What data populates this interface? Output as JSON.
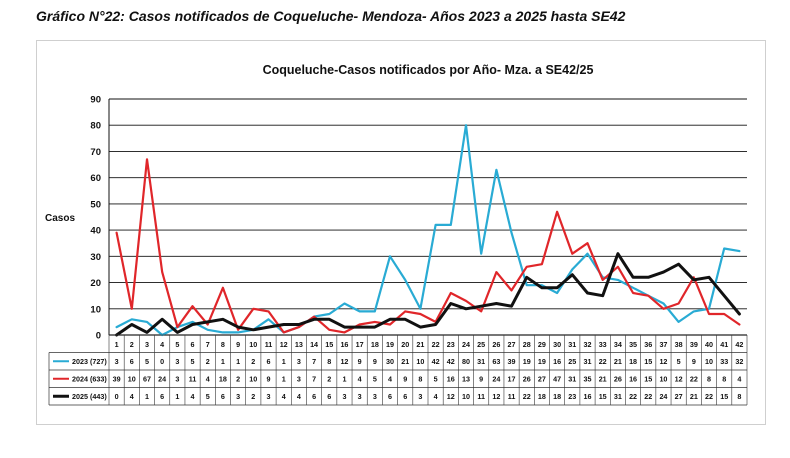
{
  "page": {
    "heading": "Gráfico N°22: Casos notificados de Coqueluche- Mendoza- Años 2023 a 2025 hasta SE42"
  },
  "chart_data": {
    "type": "line",
    "title": "Coqueluche-Casos notificados por Año- Mza. a SE42/25",
    "ylabel": "Casos",
    "xlabel": "",
    "ylim": [
      0,
      90
    ],
    "yticks": [
      0,
      10,
      20,
      30,
      40,
      50,
      60,
      70,
      80,
      90
    ],
    "grid": "horizontal",
    "legend": "data table below the plot",
    "categories": [
      "1",
      "2",
      "3",
      "4",
      "5",
      "6",
      "7",
      "8",
      "9",
      "10",
      "11",
      "12",
      "13",
      "14",
      "15",
      "16",
      "17",
      "18",
      "19",
      "20",
      "21",
      "22",
      "23",
      "24",
      "25",
      "26",
      "27",
      "28",
      "29",
      "30",
      "31",
      "32",
      "33",
      "34",
      "35",
      "36",
      "37",
      "38",
      "39",
      "40",
      "41",
      "42"
    ],
    "series": [
      {
        "name": "2023 (727)",
        "color": "#29abd4",
        "values": [
          3,
          6,
          5,
          0,
          3,
          5,
          2,
          1,
          1,
          2,
          6,
          1,
          3,
          7,
          8,
          12,
          9,
          9,
          30,
          21,
          10,
          42,
          42,
          80,
          31,
          63,
          39,
          19,
          19,
          16,
          25,
          31,
          22,
          21,
          18,
          15,
          12,
          5,
          9,
          10,
          33,
          32
        ]
      },
      {
        "name": "2024 (633)",
        "color": "#e0262a",
        "values": [
          39,
          10,
          67,
          24,
          3,
          11,
          4,
          18,
          2,
          10,
          9,
          1,
          3,
          7,
          2,
          1,
          4,
          5,
          4,
          9,
          8,
          5,
          16,
          13,
          9,
          24,
          17,
          26,
          27,
          47,
          31,
          35,
          21,
          26,
          16,
          15,
          10,
          12,
          22,
          8,
          8,
          4
        ]
      },
      {
        "name": "2025 (443)",
        "color": "#111111",
        "values": [
          0,
          4,
          1,
          6,
          1,
          4,
          5,
          6,
          3,
          2,
          3,
          4,
          4,
          6,
          6,
          3,
          3,
          3,
          6,
          6,
          3,
          4,
          12,
          10,
          11,
          12,
          11,
          22,
          18,
          18,
          23,
          16,
          15,
          31,
          22,
          22,
          24,
          27,
          21,
          22,
          15,
          8
        ]
      }
    ]
  }
}
